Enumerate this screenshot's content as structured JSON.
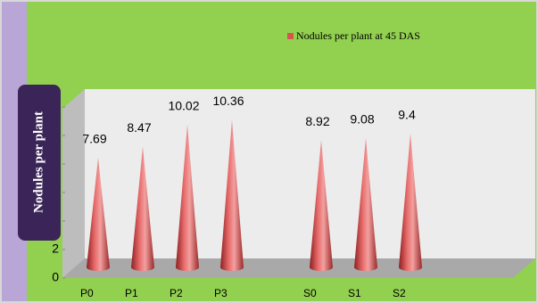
{
  "chart_data": {
    "type": "cone",
    "legend_label": "Nodules per plant at 45 DAS",
    "y_axis_label": "Nodules per plant",
    "categories": [
      "P0",
      "P1",
      "P2",
      "P3",
      null,
      "S0",
      "S1",
      "S2"
    ],
    "values": [
      7.69,
      8.47,
      10.02,
      10.36,
      null,
      8.92,
      9.08,
      9.4
    ],
    "color": "#d9534f",
    "ylim": [
      0,
      14
    ],
    "yticks": [
      0,
      2,
      4,
      6,
      8,
      10,
      12
    ]
  }
}
